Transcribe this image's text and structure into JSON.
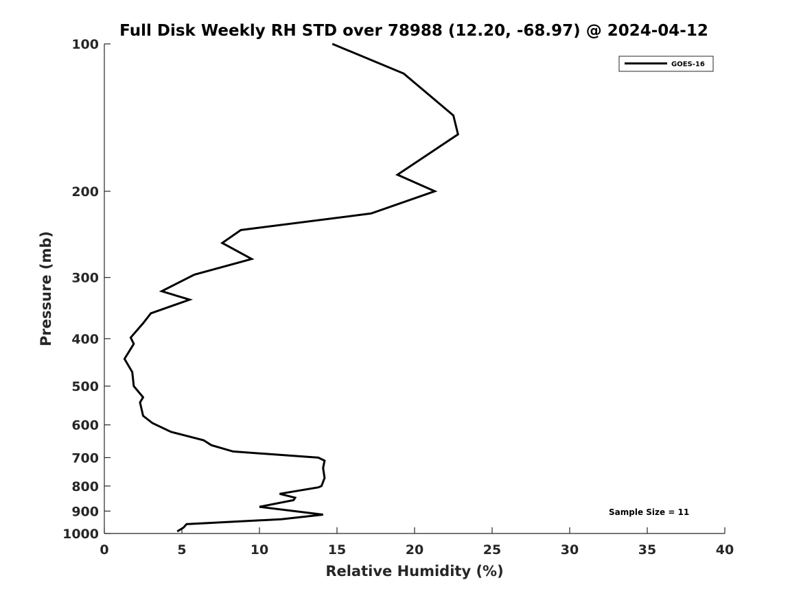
{
  "chart_data": {
    "type": "line",
    "title": "Full Disk Weekly RH STD over 78988 (12.20, -68.97) @ 2024-04-12",
    "xlabel": "Relative Humidity (%)",
    "ylabel": "Pressure (mb)",
    "xlim": [
      0,
      40
    ],
    "ylim": [
      1000,
      100
    ],
    "yscale": "log",
    "x_ticks": [
      0,
      5,
      10,
      15,
      20,
      25,
      30,
      35,
      40
    ],
    "x_tick_labels": [
      "0",
      "5",
      "10",
      "15",
      "20",
      "25",
      "30",
      "35",
      "40"
    ],
    "y_ticks": [
      100,
      200,
      300,
      400,
      500,
      600,
      700,
      800,
      900,
      1000
    ],
    "y_tick_labels": [
      "100",
      "200",
      "300",
      "400",
      "500",
      "600",
      "700",
      "800",
      "900",
      "1000"
    ],
    "grid": false,
    "legend_position": "top-right",
    "annotation": "Sample Size = 11",
    "series": [
      {
        "name": "GOES-16",
        "color": "#000000",
        "x": [
          14.7,
          19.3,
          22.5,
          22.8,
          18.9,
          21.3,
          17.2,
          8.8,
          7.6,
          9.5,
          5.8,
          3.7,
          5.5,
          3.0,
          2.5,
          1.7,
          1.9,
          1.3,
          1.8,
          1.9,
          2.5,
          2.3,
          2.5,
          3.1,
          4.3,
          6.4,
          6.9,
          8.3,
          13.8,
          14.2,
          14.1,
          14.2,
          14.0,
          13.8,
          11.3,
          12.3,
          12.2,
          10.0,
          14.1,
          11.4,
          5.3,
          5.1,
          4.7
        ],
        "y": [
          100,
          115,
          140,
          153,
          185,
          200,
          222,
          240,
          255,
          275,
          296,
          320,
          333,
          355,
          372,
          398,
          410,
          440,
          468,
          500,
          527,
          540,
          575,
          595,
          620,
          645,
          660,
          680,
          700,
          710,
          735,
          770,
          800,
          805,
          830,
          845,
          855,
          882,
          915,
          935,
          957,
          973,
          990
        ]
      }
    ]
  }
}
